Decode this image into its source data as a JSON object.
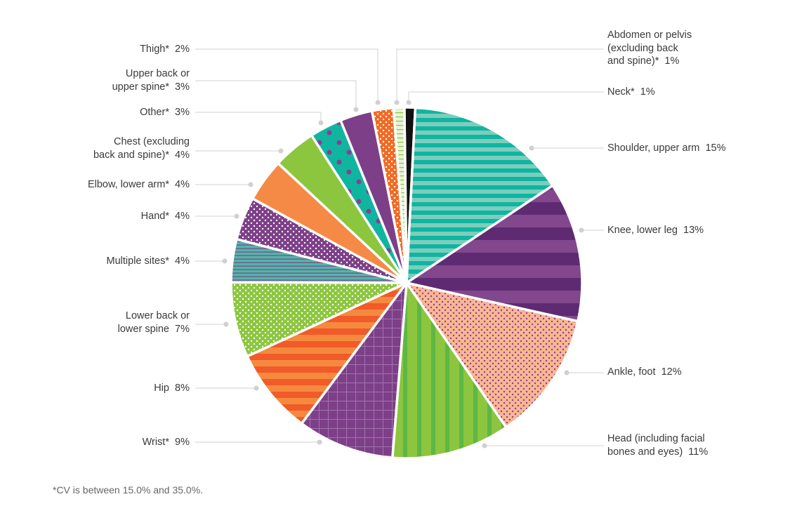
{
  "chart_data": {
    "type": "pie",
    "direction": "clockwise from top",
    "slices": [
      {
        "label": "Neck*",
        "value": 1,
        "pattern": "solid",
        "colors": [
          "#111111"
        ]
      },
      {
        "label": "Shoulder, upper arm",
        "value": 15,
        "pattern": "h-stripes",
        "colors": [
          "#0fb5a0",
          "#7ccdbd"
        ]
      },
      {
        "label": "Knee, lower leg",
        "value": 13,
        "pattern": "h-stripes",
        "colors": [
          "#5e2b72",
          "#83478e"
        ]
      },
      {
        "label": "Ankle, foot",
        "value": 12,
        "pattern": "dots",
        "colors": [
          "#f9b792",
          "#8a3f8f"
        ]
      },
      {
        "label": "Head (including facial\nbones and eyes)",
        "value": 11,
        "pattern": "v-stripes",
        "colors": [
          "#8cc63f",
          "#5db744"
        ]
      },
      {
        "label": "Wrist*",
        "value": 9,
        "pattern": "grid",
        "colors": [
          "#7d3f88",
          "#a273ad"
        ]
      },
      {
        "label": "Hip",
        "value": 8,
        "pattern": "h-stripes",
        "colors": [
          "#f15a29",
          "#f58a3f"
        ]
      },
      {
        "label": "Lower back or\nlower spine",
        "value": 7,
        "pattern": "dots",
        "colors": [
          "#8cc63f",
          "#ffffff"
        ]
      },
      {
        "label": "Multiple sites*",
        "value": 4,
        "pattern": "thin-lines",
        "colors": [
          "#4fb7a8",
          "#8a3f8f"
        ]
      },
      {
        "label": "Hand*",
        "value": 4,
        "pattern": "dots",
        "colors": [
          "#7d3f88",
          "#ffffff"
        ]
      },
      {
        "label": "Elbow, lower arm*",
        "value": 4,
        "pattern": "solid",
        "colors": [
          "#f58a46"
        ]
      },
      {
        "label": "Chest (excluding\nback and spine)*",
        "value": 4,
        "pattern": "solid",
        "colors": [
          "#8cc63f"
        ]
      },
      {
        "label": "Other*",
        "value": 3,
        "pattern": "big-dots",
        "colors": [
          "#10b5a0",
          "#8a3f8f"
        ]
      },
      {
        "label": "Upper back or\nupper spine*",
        "value": 3,
        "pattern": "solid",
        "colors": [
          "#7d3f88"
        ]
      },
      {
        "label": "Thigh*",
        "value": 2,
        "pattern": "dots",
        "colors": [
          "#f26a22",
          "#ffffff"
        ]
      },
      {
        "label": "Abdomen or pelvis\n(excluding back\nand spine)*",
        "value": 1,
        "pattern": "h-lines",
        "colors": [
          "#e8f3d8",
          "#8cc63f"
        ]
      }
    ],
    "value_suffix": "%",
    "legend": "none (callout labels)"
  },
  "footnote": "*CV is between 15.0% and 35.0%."
}
